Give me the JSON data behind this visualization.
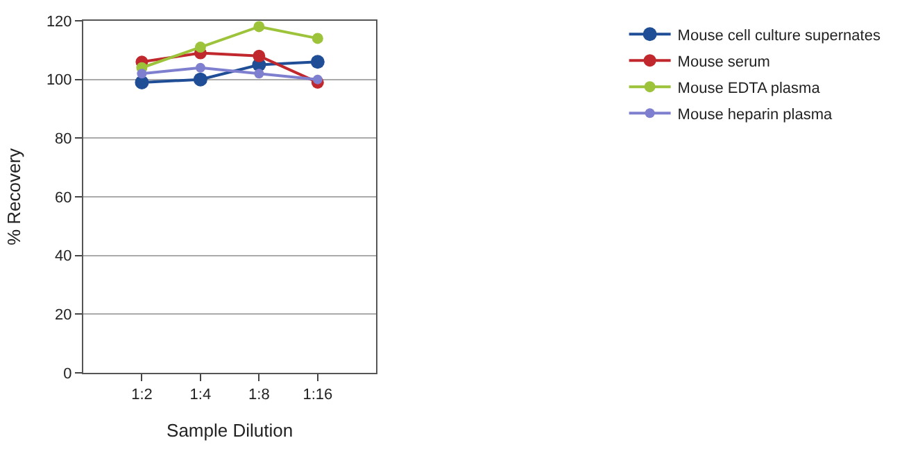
{
  "chart_data": {
    "type": "line",
    "xlabel": "Sample Dilution",
    "ylabel": "% Recovery",
    "categories": [
      "1:2",
      "1:4",
      "1:8",
      "1:16"
    ],
    "series": [
      {
        "name": "Mouse cell culture supernates",
        "color": "#1f4e96",
        "values": [
          99,
          100,
          105,
          106
        ]
      },
      {
        "name": "Mouse serum",
        "color": "#c0282d",
        "values": [
          106,
          109,
          108,
          99
        ]
      },
      {
        "name": "Mouse EDTA plasma",
        "color": "#9dc33b",
        "values": [
          104,
          111,
          118,
          114
        ]
      },
      {
        "name": "Mouse heparin plasma",
        "color": "#7f7fcf",
        "values": [
          102,
          104,
          102,
          100
        ]
      }
    ],
    "ylim": [
      0,
      120
    ],
    "yticks": [
      0,
      20,
      40,
      60,
      80,
      100,
      120
    ],
    "grid": "y",
    "legend": "right",
    "marker": "circle",
    "line_style": "solid"
  }
}
